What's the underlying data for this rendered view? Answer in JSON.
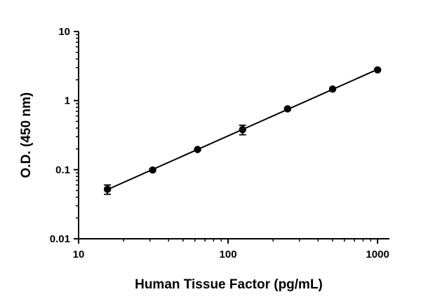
{
  "chart_data": {
    "type": "scatter",
    "title": "",
    "xlabel": "Human Tissue Factor (pg/mL)",
    "ylabel": "O.D. (450 nm)",
    "x_scale": "log",
    "y_scale": "log",
    "xlim": [
      10,
      1200
    ],
    "ylim": [
      0.01,
      10
    ],
    "x_ticks": [
      10,
      100,
      1000
    ],
    "x_tick_labels": [
      "10",
      "100",
      "1000"
    ],
    "y_ticks": [
      0.01,
      0.1,
      1,
      10
    ],
    "y_tick_labels": [
      "0.01",
      "0.1",
      "1",
      "10"
    ],
    "grid": false,
    "legend": "none",
    "series": [
      {
        "x": [
          15.6,
          31.3,
          62.5,
          125,
          250,
          500,
          1000
        ],
        "y": [
          0.052,
          0.099,
          0.196,
          0.38,
          0.76,
          1.47,
          2.78
        ],
        "y_err": [
          0.008,
          0.004,
          0.006,
          0.06,
          0.03,
          0.05,
          0.06
        ],
        "marker": "circle",
        "color": "#000000",
        "fit_line": true
      }
    ]
  }
}
